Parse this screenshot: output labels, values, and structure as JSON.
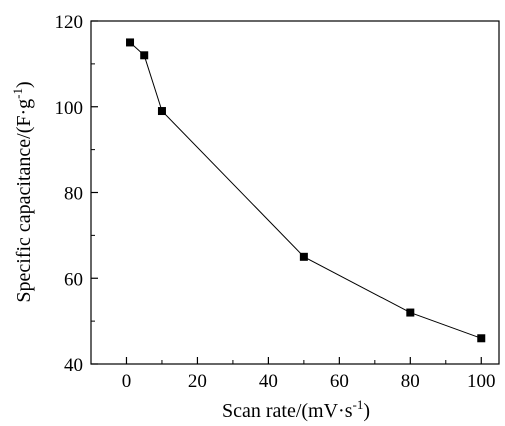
{
  "chart_data": {
    "type": "line",
    "title": "",
    "xlabel": {
      "prefix": "Scan rate/(mV·s",
      "sup": "-1",
      "suffix": ")"
    },
    "ylabel": {
      "prefix": "Specific capacitance/(F·g",
      "sup": "-1",
      "suffix": ")"
    },
    "xlim": [
      -10,
      105
    ],
    "ylim": [
      40,
      120
    ],
    "x_ticks": [
      0,
      20,
      40,
      60,
      80,
      100
    ],
    "y_ticks": [
      40,
      60,
      80,
      100,
      120
    ],
    "x_minor_step": 10,
    "y_minor_step": 10,
    "grid": false,
    "legend": "none",
    "series": [
      {
        "marker": "square",
        "color": "#000000",
        "x": [
          1,
          5,
          10,
          50,
          80,
          100
        ],
        "y": [
          115,
          112,
          99,
          65,
          52,
          46
        ]
      }
    ]
  }
}
